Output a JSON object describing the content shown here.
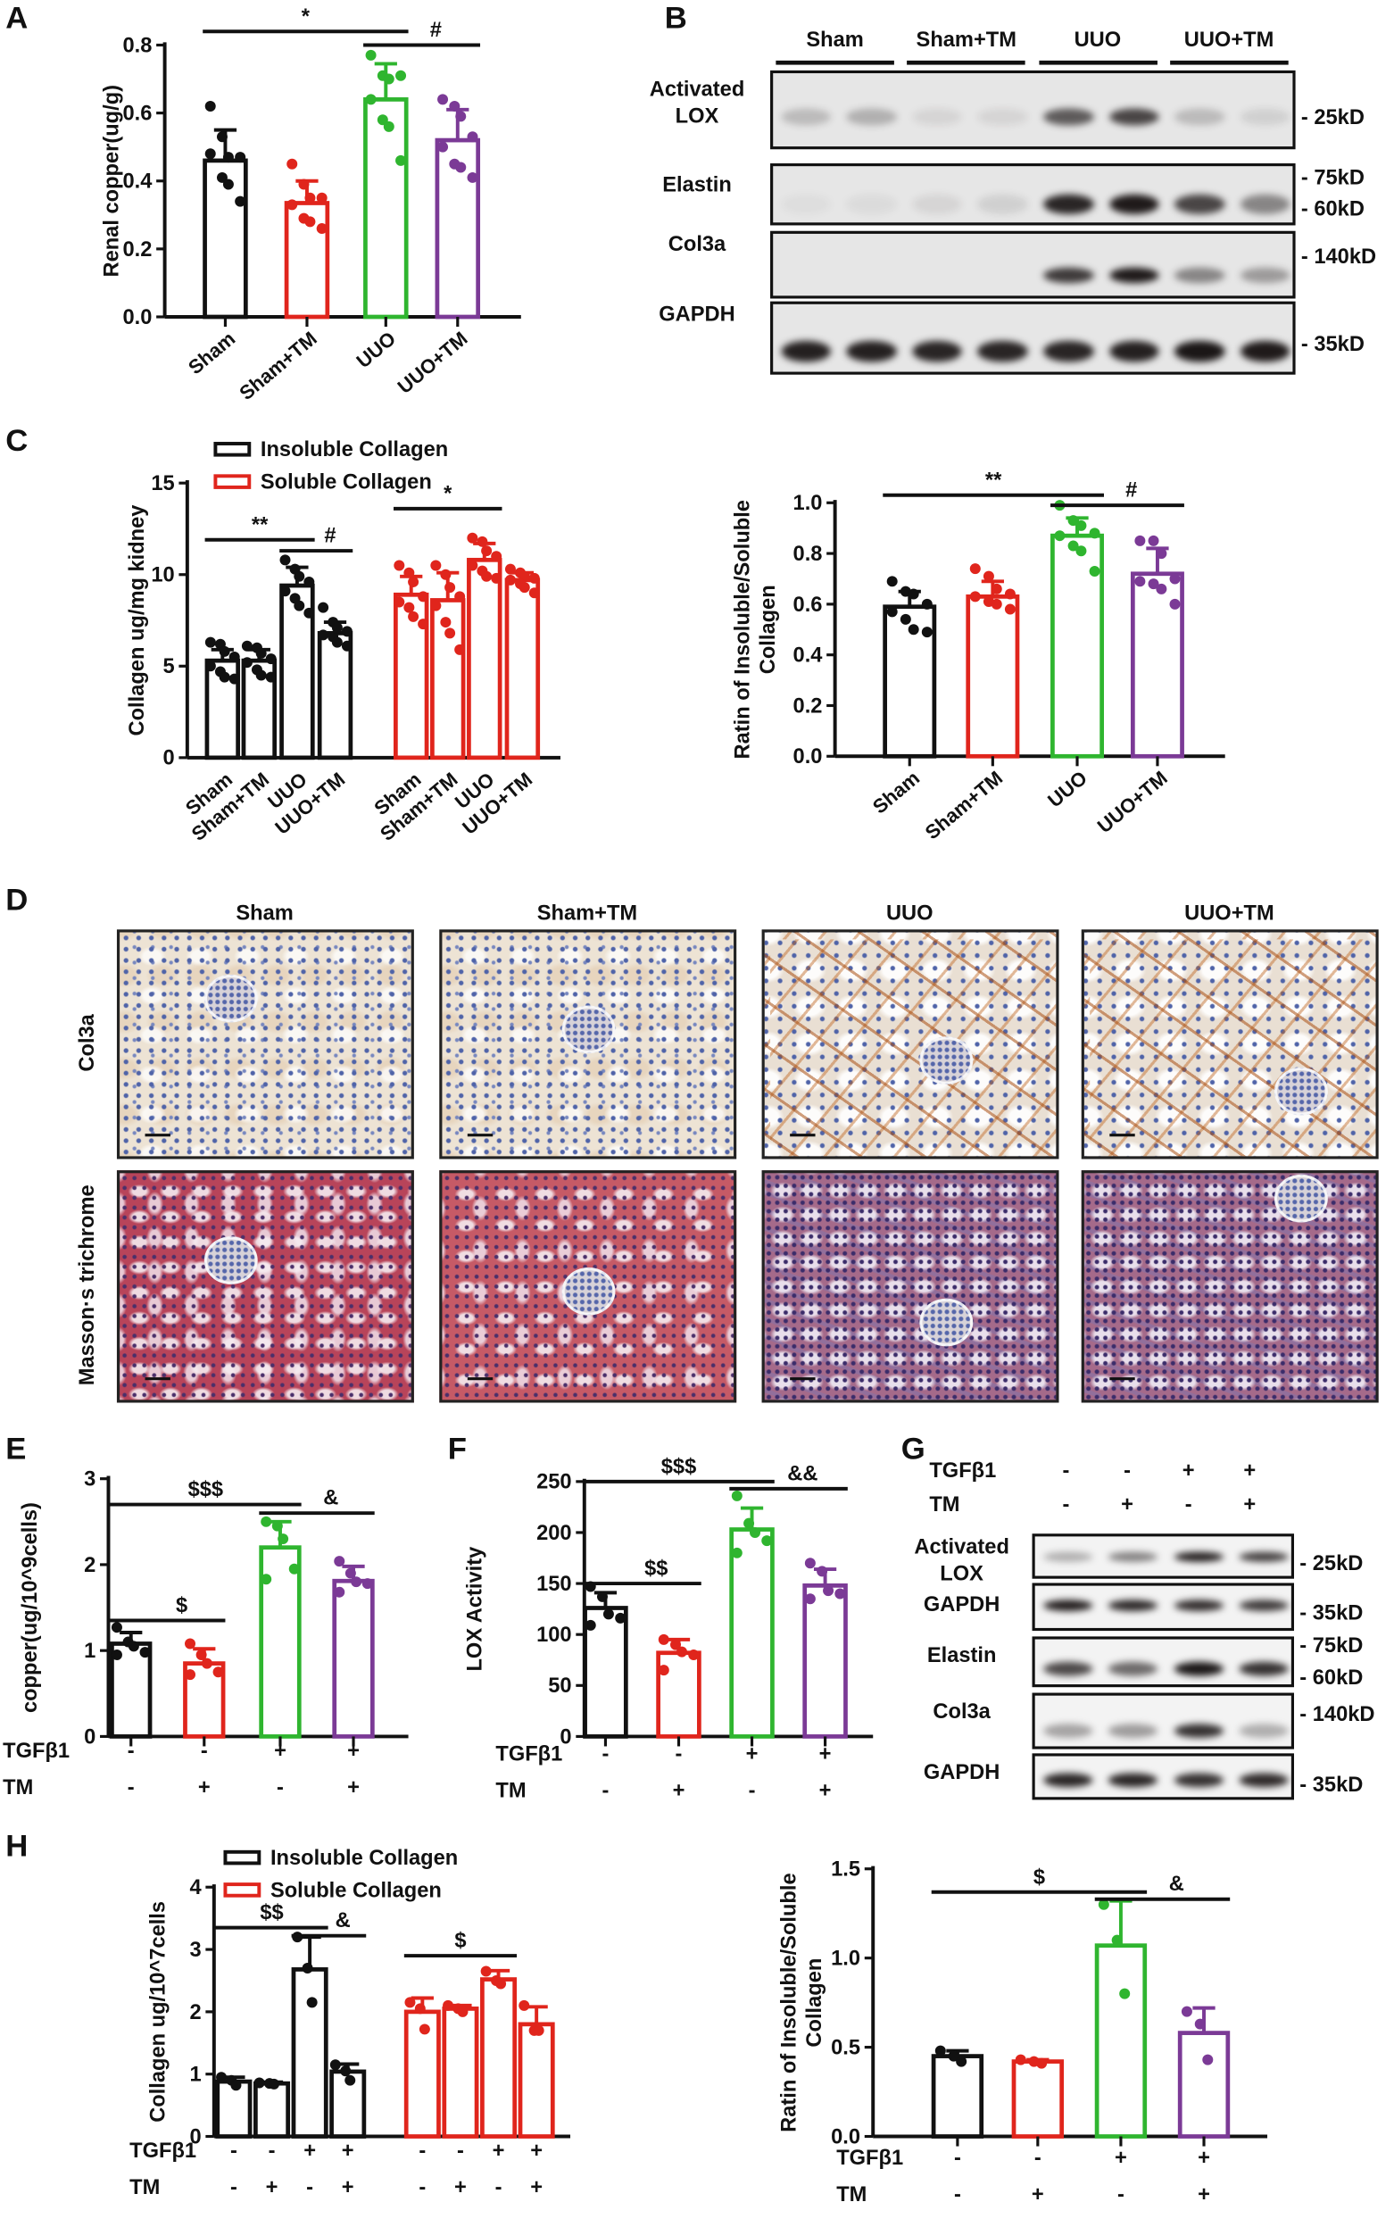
{
  "panel_labels": [
    "A",
    "B",
    "C",
    "D",
    "E",
    "F",
    "G",
    "H"
  ],
  "colors": {
    "black": "#111111",
    "red": "#e0251c",
    "green": "#2fb52f",
    "purple": "#7b3a96"
  },
  "chart_data": [
    {
      "id": "A",
      "type": "bar",
      "ylabel": "Renal copper(ug/g)",
      "ylim": [
        0,
        0.8
      ],
      "yticks": [
        "0.0",
        "0.2",
        "0.4",
        "0.6",
        "0.8"
      ],
      "categories": [
        "Sham",
        "Sham+TM",
        "UUO",
        "UUO+TM"
      ],
      "series": [
        {
          "colors": [
            "#111111",
            "#e0251c",
            "#2fb52f",
            "#7b3a96"
          ],
          "values": [
            0.46,
            0.335,
            0.64,
            0.52
          ],
          "errors": [
            0.09,
            0.065,
            0.105,
            0.09
          ],
          "points": [
            [
              0.62,
              0.53,
              0.47,
              0.47,
              0.48,
              0.41,
              0.39,
              0.34
            ],
            [
              0.45,
              0.39,
              0.35,
              0.35,
              0.33,
              0.29,
              0.28,
              0.26
            ],
            [
              0.77,
              0.71,
              0.7,
              0.71,
              0.64,
              0.58,
              0.56,
              0.46
            ],
            [
              0.64,
              0.62,
              0.59,
              0.53,
              0.5,
              0.45,
              0.44,
              0.41
            ]
          ]
        }
      ],
      "significance": [
        {
          "label": "*",
          "from": 0,
          "to": 2,
          "level": 0.84
        },
        {
          "label": "#",
          "from": 2,
          "to": 3,
          "level": 0.8
        }
      ]
    },
    {
      "id": "C1",
      "type": "bar",
      "ylabel": "Collagen ug/mg kidney",
      "ylim": [
        0,
        15
      ],
      "yticks": [
        "0",
        "5",
        "10",
        "15"
      ],
      "categories": [
        "Sham",
        "Sham+TM",
        "UUO",
        "UUO+TM"
      ],
      "legend": [
        "Insoluble Collagen",
        "Soluble Collagen"
      ],
      "series": [
        {
          "name": "Insoluble Collagen",
          "color": "#111111",
          "values": [
            5.3,
            5.3,
            9.4,
            6.8
          ],
          "errors": [
            0.6,
            0.6,
            1.0,
            0.6
          ],
          "points": [
            [
              6.3,
              6.2,
              5.8,
              5.5,
              5.0,
              4.7,
              4.4,
              4.3
            ],
            [
              6.1,
              6.0,
              5.7,
              5.4,
              5.2,
              4.8,
              4.5,
              4.4
            ],
            [
              10.8,
              10.3,
              9.9,
              9.6,
              9.1,
              8.7,
              8.3,
              7.9
            ],
            [
              8.2,
              7.4,
              7.1,
              6.9,
              6.7,
              6.6,
              6.3,
              6.1
            ]
          ]
        },
        {
          "name": "Soluble Collagen",
          "color": "#e0251c",
          "values": [
            8.9,
            8.6,
            10.8,
            9.7
          ],
          "errors": [
            1.0,
            1.5,
            0.9,
            0.4
          ],
          "points": [
            [
              10.5,
              10.1,
              9.6,
              8.8,
              8.5,
              8.2,
              7.7,
              7.3
            ],
            [
              10.5,
              10.0,
              9.3,
              8.8,
              8.3,
              7.4,
              6.8,
              5.9
            ],
            [
              12.0,
              11.8,
              11.3,
              11.0,
              10.5,
              10.2,
              9.9,
              9.8
            ],
            [
              10.3,
              10.1,
              9.9,
              9.8,
              9.7,
              9.5,
              9.3,
              9.0
            ]
          ]
        }
      ],
      "significance": [
        {
          "label": "**",
          "from": 0,
          "to": 2,
          "level": 11.9
        },
        {
          "label": "#",
          "from": 2,
          "to": 3,
          "level": 11.3
        },
        {
          "label": "*",
          "from": 4,
          "to": 6,
          "level": 13.6
        }
      ]
    },
    {
      "id": "C2",
      "type": "bar",
      "ylabel": "Ratin of Insoluble/Soluble",
      "ylabel2": "Collagen",
      "ylim": [
        0,
        1.0
      ],
      "yticks": [
        "0.0",
        "0.2",
        "0.4",
        "0.6",
        "0.8",
        "1.0"
      ],
      "categories": [
        "Sham",
        "Sham+TM",
        "UUO",
        "UUO+TM"
      ],
      "series": [
        {
          "colors": [
            "#111111",
            "#e0251c",
            "#2fb52f",
            "#7b3a96"
          ],
          "values": [
            0.59,
            0.63,
            0.87,
            0.72
          ],
          "errors": [
            0.06,
            0.06,
            0.07,
            0.1
          ],
          "points": [
            [
              0.69,
              0.65,
              0.64,
              0.6,
              0.57,
              0.54,
              0.5,
              0.49
            ],
            [
              0.74,
              0.71,
              0.66,
              0.64,
              0.63,
              0.61,
              0.6,
              0.58
            ],
            [
              0.99,
              0.93,
              0.91,
              0.88,
              0.87,
              0.83,
              0.81,
              0.73
            ],
            [
              0.85,
              0.85,
              0.8,
              0.7,
              0.69,
              0.68,
              0.66,
              0.6
            ]
          ]
        }
      ],
      "significance": [
        {
          "label": "**",
          "from": 0,
          "to": 2,
          "level": 1.03
        },
        {
          "label": "#",
          "from": 2,
          "to": 3,
          "level": 0.99
        }
      ]
    },
    {
      "id": "E",
      "type": "bar",
      "ylabel": "copper(ug/10^9cells)",
      "ylim": [
        0,
        3
      ],
      "yticks": [
        "0",
        "1",
        "2",
        "3"
      ],
      "conditions": [
        {
          "name": "TGFβ1",
          "values": [
            "-",
            "-",
            "+",
            "+"
          ]
        },
        {
          "name": "TM",
          "values": [
            "-",
            "+",
            "-",
            "+"
          ]
        }
      ],
      "series": [
        {
          "colors": [
            "#111111",
            "#e0251c",
            "#2fb52f",
            "#7b3a96"
          ],
          "values": [
            1.08,
            0.85,
            2.2,
            1.81
          ],
          "errors": [
            0.13,
            0.17,
            0.3,
            0.17
          ],
          "points": [
            [
              1.27,
              1.1,
              1.05,
              0.98,
              0.95
            ],
            [
              1.08,
              0.95,
              0.85,
              0.75,
              0.72
            ],
            [
              2.5,
              2.45,
              2.3,
              1.95,
              1.83
            ],
            [
              2.04,
              1.9,
              1.8,
              1.78,
              1.68
            ]
          ]
        }
      ],
      "significance": [
        {
          "label": "$",
          "from": 0,
          "to": 1,
          "level": 1.35
        },
        {
          "label": "$$$",
          "from": 0,
          "to": 2,
          "level": 2.7
        },
        {
          "label": "&",
          "from": 2,
          "to": 3,
          "level": 2.6
        }
      ]
    },
    {
      "id": "F",
      "type": "bar",
      "ylabel": "LOX Activity",
      "ylim": [
        0,
        250
      ],
      "yticks": [
        "0",
        "50",
        "100",
        "150",
        "200",
        "250"
      ],
      "conditions": [
        {
          "name": "TGFβ1",
          "values": [
            "-",
            "-",
            "+",
            "+"
          ]
        },
        {
          "name": "TM",
          "values": [
            "-",
            "+",
            "-",
            "+"
          ]
        }
      ],
      "series": [
        {
          "colors": [
            "#111111",
            "#e0251c",
            "#2fb52f",
            "#7b3a96"
          ],
          "values": [
            126,
            82,
            203,
            148
          ],
          "errors": [
            15,
            13,
            21,
            16
          ],
          "points": [
            [
              147,
              137,
              120,
              116,
              109
            ],
            [
              95,
              90,
              83,
              80,
              65
            ],
            [
              236,
              209,
              200,
              192,
              180
            ],
            [
              170,
              162,
              143,
              140,
              135
            ]
          ]
        }
      ],
      "significance": [
        {
          "label": "$$",
          "from": 0,
          "to": 1,
          "level": 150
        },
        {
          "label": "$$$",
          "from": 0,
          "to": 2,
          "level": 250
        },
        {
          "label": "&&",
          "from": 2,
          "to": 3,
          "level": 243
        }
      ]
    },
    {
      "id": "H1",
      "type": "bar",
      "ylabel": "Collagen ug/10^7cells",
      "ylim": [
        0,
        4
      ],
      "yticks": [
        "0",
        "1",
        "2",
        "3",
        "4"
      ],
      "legend": [
        "Insoluble Collagen",
        "Soluble Collagen"
      ],
      "conditions": [
        {
          "name": "TGFβ1",
          "values": [
            "-",
            "-",
            "+",
            "+"
          ]
        },
        {
          "name": "TM",
          "values": [
            "-",
            "+",
            "-",
            "+"
          ]
        }
      ],
      "series": [
        {
          "name": "Insoluble Collagen",
          "color": "#111111",
          "values": [
            0.88,
            0.85,
            2.68,
            1.04
          ],
          "errors": [
            0.07,
            0.02,
            0.52,
            0.12
          ],
          "points": [
            [
              0.95,
              0.9,
              0.82
            ],
            [
              0.86,
              0.85,
              0.84
            ],
            [
              3.2,
              2.7,
              2.15
            ],
            [
              1.15,
              1.05,
              0.9
            ]
          ]
        },
        {
          "name": "Soluble Collagen",
          "color": "#e0251c",
          "values": [
            2.0,
            2.05,
            2.52,
            1.8
          ],
          "errors": [
            0.22,
            0.05,
            0.14,
            0.28
          ],
          "points": [
            [
              2.15,
              2.05,
              1.72
            ],
            [
              2.1,
              2.05,
              2.0
            ],
            [
              2.65,
              2.5,
              2.45
            ],
            [
              2.1,
              1.7,
              1.7
            ]
          ]
        }
      ],
      "significance": [
        {
          "label": "$$",
          "from": 0,
          "to": 2,
          "level": 3.35
        },
        {
          "label": "&",
          "from": 2,
          "to": 3,
          "level": 3.22
        },
        {
          "label": "$",
          "from": 4,
          "to": 6,
          "level": 2.9
        }
      ]
    },
    {
      "id": "H2",
      "type": "bar",
      "ylabel": "Ratin of Insoluble/Soluble",
      "ylabel2": "Collagen",
      "ylim": [
        0,
        1.5
      ],
      "yticks": [
        "0.0",
        "0.5",
        "1.0",
        "1.5"
      ],
      "conditions": [
        {
          "name": "TGFβ1",
          "values": [
            "-",
            "-",
            "+",
            "+"
          ]
        },
        {
          "name": "TM",
          "values": [
            "-",
            "+",
            "-",
            "+"
          ]
        }
      ],
      "series": [
        {
          "colors": [
            "#111111",
            "#e0251c",
            "#2fb52f",
            "#7b3a96"
          ],
          "values": [
            0.45,
            0.42,
            1.07,
            0.58
          ],
          "errors": [
            0.03,
            0.01,
            0.25,
            0.14
          ],
          "points": [
            [
              0.48,
              0.45,
              0.42
            ],
            [
              0.43,
              0.42,
              0.41
            ],
            [
              1.3,
              1.1,
              0.8
            ],
            [
              0.7,
              0.63,
              0.43
            ]
          ]
        }
      ],
      "significance": [
        {
          "label": "$",
          "from": 0,
          "to": 2,
          "level": 1.37
        },
        {
          "label": "&",
          "from": 2,
          "to": 3,
          "level": 1.33
        }
      ]
    }
  ],
  "blot_B": {
    "groups": [
      "Sham",
      "Sham+TM",
      "UUO",
      "UUO+TM"
    ],
    "rows": [
      {
        "label": "Activated\nLOX",
        "markers": [
          "25kD"
        ],
        "bands": [
          0.2,
          0.25,
          0.08,
          0.08,
          0.65,
          0.75,
          0.2,
          0.1
        ]
      },
      {
        "label": "Elastin",
        "markers": [
          "75kD",
          "60kD"
        ],
        "bands": [
          0.04,
          0.05,
          0.08,
          0.1,
          0.9,
          0.95,
          0.75,
          0.45
        ]
      },
      {
        "label": "Col3a",
        "markers": [
          "140kD"
        ],
        "bands": [
          0,
          0,
          0,
          0,
          0.8,
          0.95,
          0.45,
          0.35
        ]
      },
      {
        "label": "GAPDH",
        "markers": [
          "35kD"
        ],
        "bands": [
          0.92,
          0.92,
          0.9,
          0.9,
          0.9,
          0.92,
          0.97,
          0.95
        ]
      }
    ]
  },
  "blot_G": {
    "conditions": [
      {
        "name": "TGFβ1",
        "values": [
          "-",
          "-",
          "+",
          "+"
        ]
      },
      {
        "name": "TM",
        "values": [
          "-",
          "+",
          "-",
          "+"
        ]
      }
    ],
    "rows": [
      {
        "label": "Activated\nLOX",
        "markers": [
          "25kD"
        ],
        "bands": [
          0.3,
          0.5,
          0.95,
          0.8
        ]
      },
      {
        "label": "GAPDH",
        "markers": [
          "35kD"
        ],
        "bands": [
          0.95,
          0.9,
          0.88,
          0.82
        ]
      },
      {
        "label": "Elastin",
        "markers": [
          "75kD",
          "60kD"
        ],
        "bands": [
          0.75,
          0.6,
          0.97,
          0.85
        ]
      },
      {
        "label": "Col3a",
        "markers": [
          "140kD"
        ],
        "bands": [
          0.35,
          0.38,
          0.85,
          0.3
        ]
      },
      {
        "label": "GAPDH",
        "markers": [
          "35kD"
        ],
        "bands": [
          0.9,
          0.9,
          0.85,
          0.88
        ]
      }
    ]
  },
  "histology": {
    "columns": [
      "Sham",
      "Sham+TM",
      "UUO",
      "UUO+TM"
    ],
    "rows": [
      "Col3a",
      "Masson·s trichrome"
    ]
  }
}
